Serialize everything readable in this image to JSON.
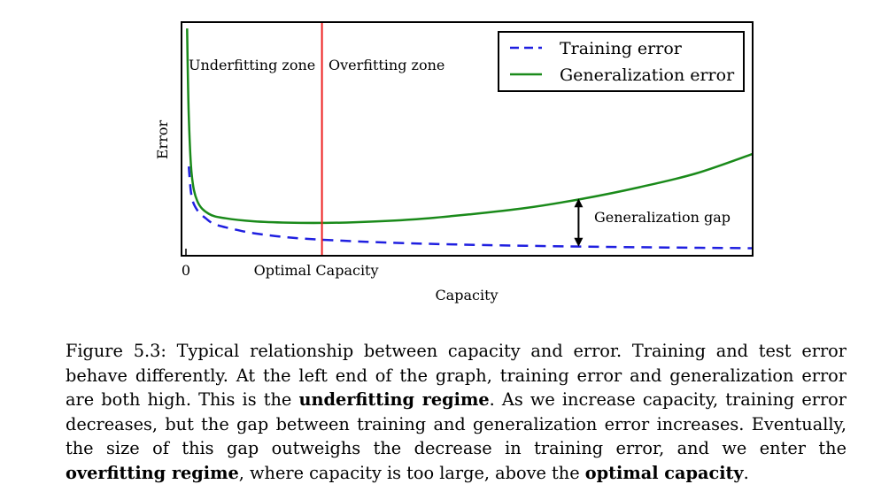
{
  "chart_data": {
    "type": "line",
    "title": "",
    "xlabel": "Capacity",
    "ylabel": "Error",
    "x_ticks": [
      {
        "label": "0",
        "x": 0
      },
      {
        "label": "Optimal Capacity",
        "x": 0.24
      }
    ],
    "xlim": [
      0,
      1
    ],
    "ylim": [
      0,
      1
    ],
    "grid": false,
    "legend_position": "top-right",
    "series": [
      {
        "name": "Training error",
        "style": "dashed",
        "color": "#1f1fe0",
        "x": [
          0.005,
          0.01,
          0.02,
          0.035,
          0.05,
          0.08,
          0.12,
          0.18,
          0.24,
          0.35,
          0.5,
          0.7,
          0.85,
          1.0
        ],
        "y": [
          0.38,
          0.25,
          0.19,
          0.155,
          0.13,
          0.11,
          0.09,
          0.072,
          0.062,
          0.05,
          0.04,
          0.032,
          0.028,
          0.025
        ]
      },
      {
        "name": "Generalization error",
        "style": "solid",
        "color": "#1a8a1a",
        "x": [
          0.002,
          0.005,
          0.01,
          0.02,
          0.04,
          0.07,
          0.12,
          0.18,
          0.24,
          0.3,
          0.4,
          0.5,
          0.6,
          0.7,
          0.8,
          0.9,
          1.0
        ],
        "y": [
          0.98,
          0.6,
          0.35,
          0.23,
          0.175,
          0.155,
          0.142,
          0.136,
          0.135,
          0.138,
          0.15,
          0.172,
          0.2,
          0.24,
          0.29,
          0.35,
          0.435
        ]
      }
    ],
    "optimal_line": {
      "x": 0.24,
      "color": "#ee2222"
    },
    "annotations": {
      "underfitting": "Underfitting zone",
      "overfitting": "Overfitting zone",
      "gap": "Generalization gap",
      "gap_x": 0.71
    }
  },
  "caption": {
    "lead": "Figure 5.3: Typical relationship between capacity and error.  Training and test error behave differently. At the left end of the graph, training error and generalization error are both high. This is the ",
    "term1": "underfitting regime",
    "mid1": ". As we increase capacity, training error decreases, but the gap between training and generalization error increases. Eventually, the size of this gap outweighs the decrease in training error, and we enter the ",
    "term2": "overfitting regime",
    "mid2": ", where capacity is too large, above the ",
    "term3": "optimal capacity",
    "end": "."
  }
}
